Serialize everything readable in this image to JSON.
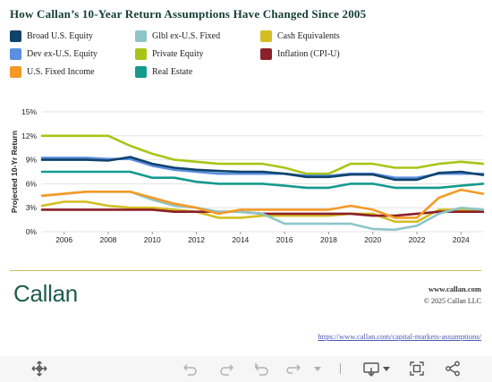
{
  "title": "How Callan’s 10-Year Return Assumptions Have Changed Since 2005",
  "footer": {
    "logo": "Callan",
    "site": "www.callan.com",
    "copyright": "© 2025 Callan LLC",
    "link": "https://www.callan.com/capital-markets-assumptions/"
  },
  "toolbar": {
    "icons": [
      "move-icon",
      "undo-icon",
      "redo-icon",
      "reset-icon",
      "forward-icon",
      "forward-dropdown-icon",
      "download-icon",
      "download-dropdown-icon",
      "fullscreen-icon",
      "share-icon"
    ]
  },
  "chart_data": {
    "type": "line",
    "title": "",
    "xlabel": "",
    "ylabel": "Projected 10-Yr Return",
    "x": [
      2005,
      2006,
      2007,
      2008,
      2009,
      2010,
      2011,
      2012,
      2013,
      2014,
      2015,
      2016,
      2017,
      2018,
      2019,
      2020,
      2021,
      2022,
      2023,
      2024,
      2025
    ],
    "xlim": [
      2005,
      2025
    ],
    "ylim": [
      0,
      15
    ],
    "x_ticks": [
      "2006",
      "2008",
      "2010",
      "2012",
      "2014",
      "2016",
      "2018",
      "2020",
      "2022",
      "2024"
    ],
    "y_ticks": [
      "0%",
      "3%",
      "6%",
      "9%",
      "12%",
      "15%"
    ],
    "grid": "horizontal",
    "legend_position": "top",
    "series": [
      {
        "name": "Broad U.S. Equity",
        "color": "#10436a",
        "values": [
          9.0,
          9.0,
          9.0,
          8.9,
          9.35,
          8.5,
          8.0,
          7.75,
          7.6,
          7.5,
          7.5,
          7.25,
          6.85,
          6.85,
          7.15,
          7.15,
          6.5,
          6.5,
          7.35,
          7.5,
          7.1
        ]
      },
      {
        "name": "Dev ex-U.S. Equity",
        "color": "#5b8fe0",
        "values": [
          9.25,
          9.25,
          9.25,
          9.1,
          9.1,
          8.25,
          7.75,
          7.5,
          7.25,
          7.25,
          7.25,
          7.25,
          7.0,
          7.0,
          7.25,
          7.25,
          6.75,
          6.75,
          7.25,
          7.25,
          7.25
        ]
      },
      {
        "name": "U.S. Fixed Income",
        "color": "#f59a28",
        "values": [
          4.5,
          4.75,
          5.0,
          5.0,
          5.0,
          4.25,
          3.5,
          3.0,
          2.25,
          2.75,
          2.75,
          2.75,
          2.75,
          2.75,
          3.25,
          2.75,
          1.75,
          1.75,
          4.25,
          5.25,
          4.75
        ]
      },
      {
        "name": "Glbl ex-U.S. Fixed",
        "color": "#8ec5c9",
        "values": [
          4.5,
          4.75,
          5.0,
          5.0,
          5.0,
          4.0,
          3.25,
          3.0,
          2.5,
          2.5,
          2.25,
          1.0,
          1.0,
          1.0,
          1.0,
          0.35,
          0.25,
          0.75,
          2.25,
          3.0,
          2.75
        ]
      },
      {
        "name": "Private Equity",
        "color": "#a8c516",
        "values": [
          12.0,
          12.0,
          12.0,
          12.0,
          10.75,
          9.75,
          9.0,
          8.75,
          8.5,
          8.5,
          8.5,
          8.0,
          7.25,
          7.25,
          8.5,
          8.5,
          8.0,
          8.0,
          8.5,
          8.75,
          8.5
        ]
      },
      {
        "name": "Real Estate",
        "color": "#149a8f",
        "values": [
          7.5,
          7.5,
          7.5,
          7.5,
          7.5,
          6.75,
          6.75,
          6.25,
          6.0,
          6.0,
          6.0,
          5.75,
          5.5,
          5.5,
          6.0,
          6.0,
          5.5,
          5.5,
          5.5,
          5.75,
          6.0
        ]
      },
      {
        "name": "Cash Equivalents",
        "color": "#d4bd22",
        "values": [
          3.25,
          3.75,
          3.75,
          3.25,
          3.0,
          3.0,
          2.75,
          2.5,
          1.75,
          1.75,
          2.0,
          2.0,
          2.0,
          2.0,
          2.25,
          2.25,
          1.25,
          1.25,
          2.75,
          2.75,
          2.75
        ]
      },
      {
        "name": "Inflation (CPI-U)",
        "color": "#8b2028",
        "values": [
          2.75,
          2.75,
          2.75,
          2.75,
          2.75,
          2.75,
          2.5,
          2.5,
          2.5,
          2.5,
          2.25,
          2.25,
          2.25,
          2.25,
          2.25,
          2.0,
          2.0,
          2.25,
          2.5,
          2.5,
          2.5
        ]
      }
    ],
    "legend_order": [
      "Broad U.S. Equity",
      "Glbl ex-U.S. Fixed",
      "Cash Equivalents",
      "Dev ex-U.S. Equity",
      "Private Equity",
      "Inflation (CPI-U)",
      "U.S. Fixed Income",
      "Real Estate"
    ]
  }
}
